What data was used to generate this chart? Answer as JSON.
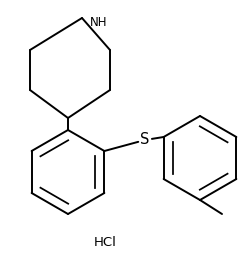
{
  "title": "",
  "hcl_label": "HCl",
  "background_color": "#ffffff",
  "line_color": "#000000",
  "text_color": "#000000",
  "line_width": 1.4,
  "font_size": 8.5,
  "nh_label": "NH",
  "s_label": "S"
}
